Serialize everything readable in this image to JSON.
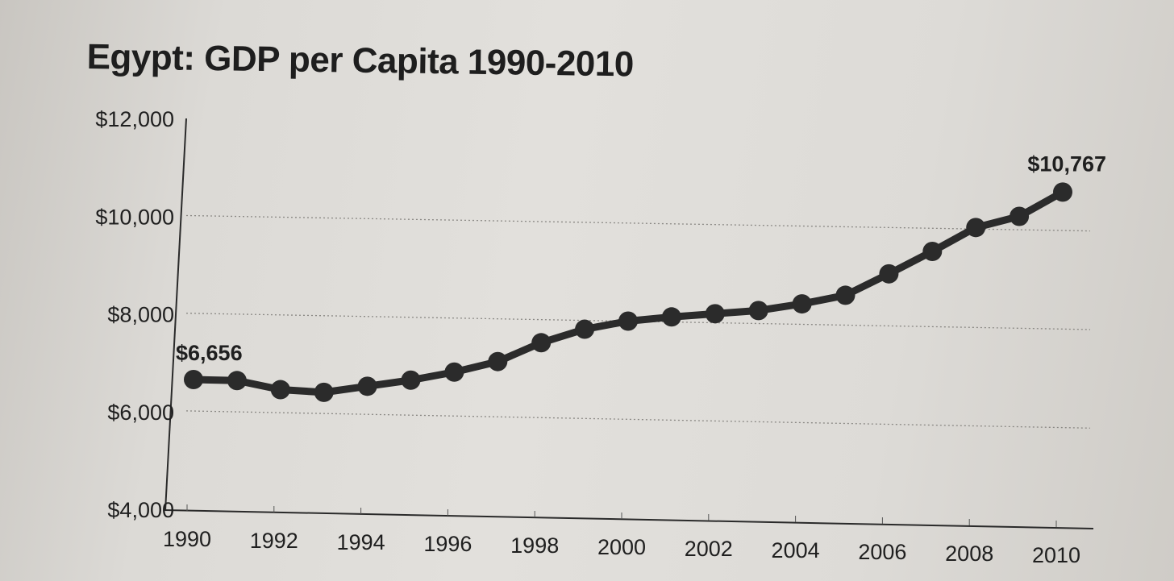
{
  "chart_data": {
    "type": "line",
    "title": "Egypt: GDP per Capita 1990-2010",
    "xlabel": "",
    "ylabel": "",
    "x": [
      1990,
      1991,
      1992,
      1993,
      1994,
      1995,
      1996,
      1997,
      1998,
      1999,
      2000,
      2001,
      2002,
      2003,
      2004,
      2005,
      2006,
      2007,
      2008,
      2009,
      2010
    ],
    "series": [
      {
        "values": [
          6656,
          6650,
          6480,
          6440,
          6580,
          6720,
          6900,
          7130,
          7530,
          7820,
          8000,
          8100,
          8180,
          8260,
          8410,
          8600,
          9050,
          9520,
          10020,
          10260,
          10767
        ],
        "color": "#2b2b2b"
      }
    ],
    "xlim": [
      1990,
      2010
    ],
    "ylim": [
      4000,
      12000
    ],
    "x_ticks": [
      1990,
      1992,
      1994,
      1996,
      1998,
      2000,
      2002,
      2004,
      2006,
      2008,
      2010
    ],
    "x_tick_labels": [
      "1990",
      "1992",
      "1994",
      "1996",
      "1998",
      "2000",
      "2002",
      "2004",
      "2006",
      "2008",
      "2010"
    ],
    "y_ticks": [
      4000,
      6000,
      8000,
      10000,
      12000
    ],
    "y_tick_labels": [
      "$4,000",
      "$6,000",
      "$8,000",
      "$10,000",
      "$12,000"
    ],
    "annotations": [
      {
        "x": 1990,
        "y": 6656,
        "text": "$6,656"
      },
      {
        "x": 2010,
        "y": 10767,
        "text": "$10,767"
      }
    ],
    "grid": true,
    "legend": "none"
  }
}
